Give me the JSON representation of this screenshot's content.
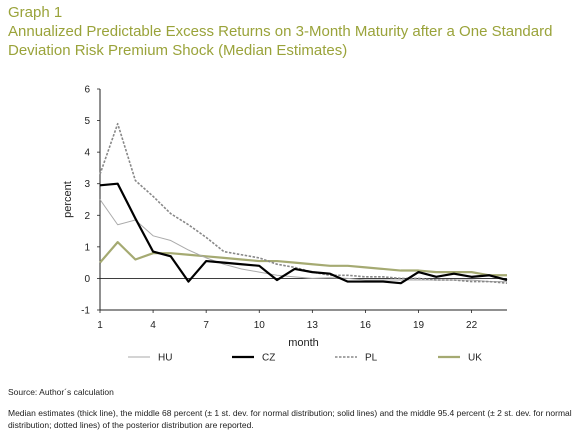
{
  "header": {
    "label": "Graph 1",
    "title": "Annualized Predictable Excess Returns on 3-Month Maturity after a One Standard Deviation Risk Premium Shock (Median Estimates)"
  },
  "footer": {
    "source": "Source: Author´s calculation",
    "note": "Median estimates (thick line), the middle 68 percent (± 1 st. dev. for normal distribution; solid lines) and the middle 95.4 percent (± 2 st. dev. for normal distribution; dotted lines) of the posterior distribution are reported."
  },
  "chart_data": {
    "type": "line",
    "xlabel": "month",
    "ylabel": "percent",
    "xlim": [
      1,
      24
    ],
    "ylim": [
      -1,
      6
    ],
    "x_ticks": [
      "1",
      "4",
      "7",
      "10",
      "13",
      "16",
      "19",
      "22"
    ],
    "y_ticks": [
      "-1",
      "0",
      "1",
      "2",
      "3",
      "4",
      "5",
      "6"
    ],
    "grid": false,
    "legend_position": "bottom",
    "x": [
      1,
      2,
      3,
      4,
      5,
      6,
      7,
      8,
      9,
      10,
      11,
      12,
      13,
      14,
      15,
      16,
      17,
      18,
      19,
      20,
      21,
      22,
      23,
      24
    ],
    "series": [
      {
        "name": "HU",
        "color": "#aaaaaa",
        "style": "solid-thin",
        "values": [
          2.5,
          1.7,
          1.85,
          1.35,
          1.2,
          0.9,
          0.65,
          0.45,
          0.3,
          0.2,
          0.1,
          0.05,
          0.0,
          0.02,
          0.0,
          -0.05,
          -0.05,
          -0.05,
          -0.05,
          -0.05,
          -0.05,
          -0.05,
          -0.1,
          -0.1
        ]
      },
      {
        "name": "CZ",
        "color": "#000000",
        "style": "solid-thick",
        "values": [
          2.95,
          3.0,
          1.9,
          0.85,
          0.7,
          -0.1,
          0.55,
          0.5,
          0.45,
          0.4,
          -0.05,
          0.3,
          0.2,
          0.15,
          -0.1,
          -0.1,
          -0.1,
          -0.15,
          0.2,
          0.05,
          0.15,
          0.05,
          0.1,
          -0.05
        ]
      },
      {
        "name": "PL",
        "color": "#888888",
        "style": "dotted",
        "values": [
          3.3,
          4.9,
          3.1,
          2.6,
          2.05,
          1.7,
          1.3,
          0.85,
          0.75,
          0.65,
          0.45,
          0.35,
          0.2,
          0.1,
          0.1,
          0.05,
          0.05,
          0.0,
          0.0,
          -0.05,
          -0.05,
          -0.1,
          -0.1,
          -0.15
        ]
      },
      {
        "name": "UK",
        "color": "#a5aa72",
        "style": "solid-thick",
        "values": [
          0.5,
          1.15,
          0.6,
          0.8,
          0.8,
          0.75,
          0.7,
          0.65,
          0.6,
          0.55,
          0.55,
          0.5,
          0.45,
          0.4,
          0.4,
          0.35,
          0.3,
          0.25,
          0.25,
          0.2,
          0.2,
          0.2,
          0.1,
          0.1
        ]
      }
    ]
  }
}
